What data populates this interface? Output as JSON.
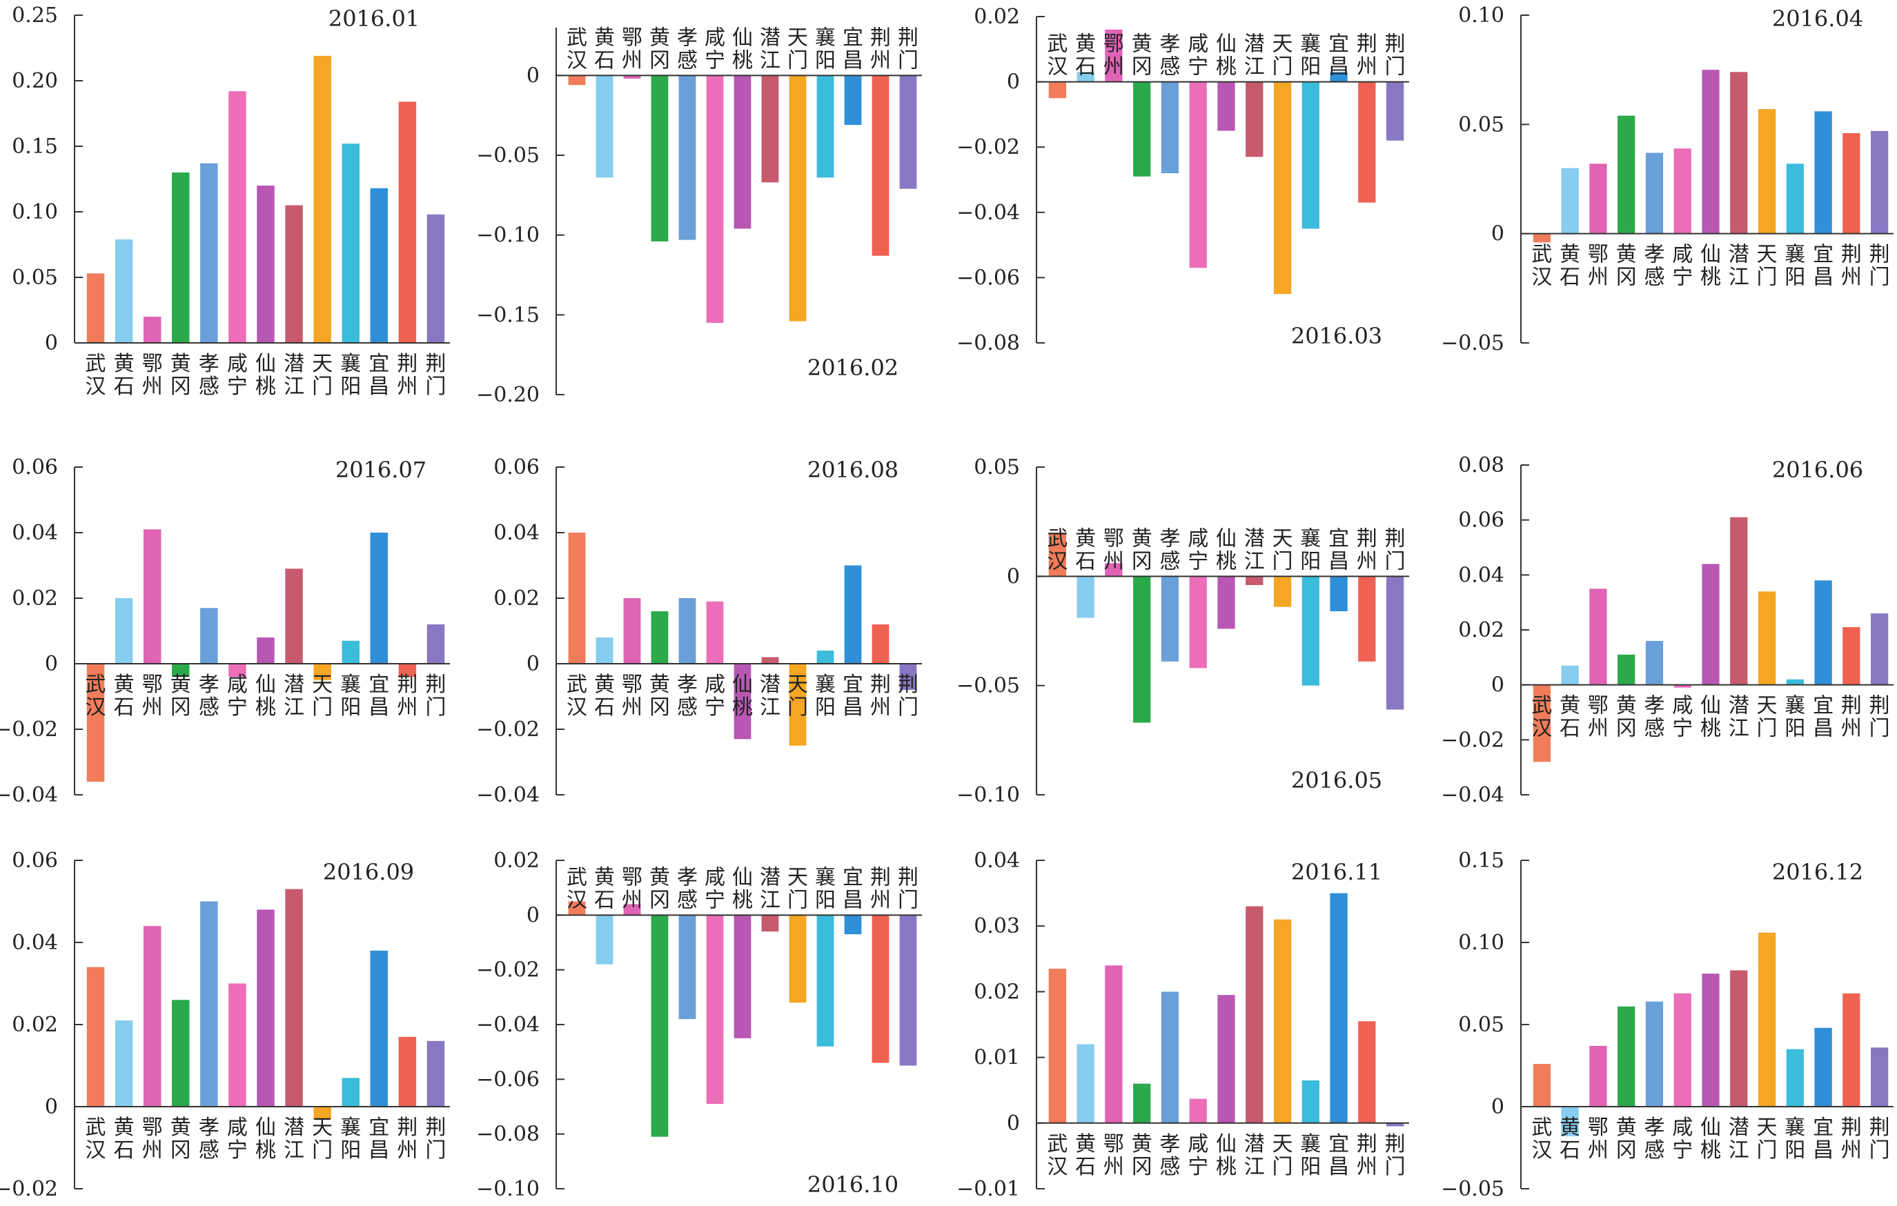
{
  "colors": [
    "#f07c5a",
    "#87cdef",
    "#e063b6",
    "#2aaa4b",
    "#6a9fd9",
    "#ec6eb8",
    "#b957b4",
    "#c85a6e",
    "#f5a623",
    "#3bbcdc",
    "#2f8fd8",
    "#ef6252",
    "#8878c3"
  ],
  "categories": [
    "武汉",
    "黄石",
    "鄂州",
    "黄冈",
    "孝感",
    "咸宁",
    "仙桃",
    "潜江",
    "天门",
    "襄阳",
    "宜昌",
    "荆州",
    "荆门"
  ],
  "chart_data": [
    {
      "type": "bar",
      "title": "2016.01",
      "ylim": [
        0,
        0.25
      ],
      "yticks": [
        "0",
        "0.05",
        "0.10",
        "0.15",
        "0.20",
        "0.25"
      ],
      "values": [
        0.053,
        0.079,
        0.02,
        0.13,
        0.137,
        0.192,
        0.12,
        0.105,
        0.219,
        0.152,
        0.118,
        0.184,
        0.098
      ]
    },
    {
      "type": "bar",
      "title": "2016.02",
      "ylim": [
        -0.2,
        0.03
      ],
      "yticks": [
        "0",
        "−0.05",
        "−0.10",
        "−0.15",
        "−0.20"
      ],
      "values": [
        -0.006,
        -0.064,
        -0.002,
        -0.104,
        -0.103,
        -0.155,
        -0.096,
        -0.067,
        -0.154,
        -0.064,
        -0.031,
        -0.113,
        -0.071
      ]
    },
    {
      "type": "bar",
      "title": "2016.03",
      "ylim": [
        -0.08,
        0.02
      ],
      "yticks": [
        "0.02",
        "0",
        "−0.02",
        "−0.04",
        "−0.06",
        "−0.08"
      ],
      "values": [
        -0.005,
        0.003,
        0.016,
        -0.029,
        -0.028,
        -0.057,
        -0.015,
        -0.023,
        -0.065,
        -0.045,
        0.003,
        -0.037,
        -0.018
      ]
    },
    {
      "type": "bar",
      "title": "2016.04",
      "ylim": [
        -0.05,
        0.1
      ],
      "yticks": [
        "0.10",
        "0.05",
        "0",
        "−0.05"
      ],
      "values": [
        -0.004,
        0.03,
        0.032,
        0.054,
        0.037,
        0.039,
        0.075,
        0.074,
        0.057,
        0.032,
        0.056,
        0.046,
        0.047
      ]
    },
    {
      "type": "bar",
      "title": "2016.07",
      "ylim": [
        -0.04,
        0.06
      ],
      "yticks": [
        "0.06",
        "0.04",
        "0.02",
        "0",
        "−0.02",
        "−0.04"
      ],
      "values": [
        -0.036,
        0.02,
        0.041,
        -0.004,
        0.017,
        -0.004,
        0.008,
        0.029,
        -0.005,
        0.007,
        0.04,
        -0.004,
        0.012
      ]
    },
    {
      "type": "bar",
      "title": "2016.08",
      "ylim": [
        -0.04,
        0.06
      ],
      "yticks": [
        "0.06",
        "0.04",
        "0.02",
        "0",
        "−0.02",
        "−0.04"
      ],
      "values": [
        0.04,
        0.008,
        0.02,
        0.016,
        0.02,
        0.019,
        -0.023,
        0.002,
        -0.025,
        0.004,
        0.03,
        0.012,
        -0.008
      ]
    },
    {
      "type": "bar",
      "title": "2016.05",
      "ylim": [
        -0.1,
        0.05
      ],
      "yticks": [
        "0.05",
        "0",
        "−0.05",
        "−0.10"
      ],
      "values": [
        0.02,
        -0.019,
        0.006,
        -0.067,
        -0.039,
        -0.042,
        -0.024,
        -0.004,
        -0.014,
        -0.05,
        -0.016,
        -0.039,
        -0.061
      ]
    },
    {
      "type": "bar",
      "title": "2016.06",
      "ylim": [
        -0.04,
        0.08
      ],
      "yticks": [
        "0.08",
        "0.06",
        "0.04",
        "0.02",
        "0",
        "−0.02",
        "−0.04"
      ],
      "values": [
        -0.028,
        0.007,
        0.035,
        0.011,
        0.016,
        -0.001,
        0.044,
        0.061,
        0.034,
        0.002,
        0.038,
        0.021,
        0.026
      ]
    },
    {
      "type": "bar",
      "title": "2016.09",
      "ylim": [
        -0.02,
        0.06
      ],
      "yticks": [
        "0.06",
        "0.04",
        "0.02",
        "0",
        "−0.02"
      ],
      "values": [
        0.034,
        0.021,
        0.044,
        0.026,
        0.05,
        0.03,
        0.048,
        0.053,
        -0.003,
        0.007,
        0.038,
        0.017,
        0.016
      ]
    },
    {
      "type": "bar",
      "title": "2016.10",
      "ylim": [
        -0.1,
        0.02
      ],
      "yticks": [
        "0.02",
        "0",
        "−0.02",
        "−0.04",
        "−0.06",
        "−0.08",
        "−0.10"
      ],
      "values": [
        0.005,
        -0.018,
        0.004,
        -0.081,
        -0.038,
        -0.069,
        -0.045,
        -0.006,
        -0.032,
        -0.048,
        -0.007,
        -0.054,
        -0.055
      ]
    },
    {
      "type": "bar",
      "title": "2016.11",
      "ylim": [
        -0.01,
        0.04
      ],
      "yticks": [
        "0.04",
        "0.03",
        "0.02",
        "0.01",
        "0",
        "−0.01"
      ],
      "values": [
        0.0235,
        0.012,
        0.024,
        0.006,
        0.02,
        0.0037,
        0.0195,
        0.033,
        0.031,
        0.0065,
        0.035,
        0.0155,
        -0.0005
      ]
    },
    {
      "type": "bar",
      "title": "2016.12",
      "ylim": [
        -0.05,
        0.15
      ],
      "yticks": [
        "0.15",
        "0.10",
        "0.05",
        "0",
        "−0.05"
      ],
      "values": [
        0.026,
        -0.018,
        0.037,
        0.061,
        0.064,
        0.069,
        0.081,
        0.083,
        0.106,
        0.035,
        0.048,
        0.069,
        0.036
      ]
    }
  ]
}
